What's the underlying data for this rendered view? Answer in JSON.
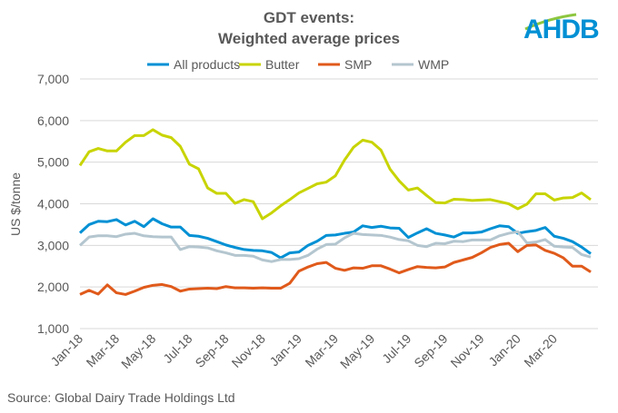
{
  "chart_data": {
    "type": "line",
    "title": "GDT events:",
    "subtitle": "Weighted average prices",
    "ylabel": "US $/tonne",
    "xlabel": "",
    "ylim": [
      1000,
      7000
    ],
    "yticks": [
      "1,000",
      "2,000",
      "3,000",
      "4,000",
      "5,000",
      "6,000",
      "7,000"
    ],
    "ytick_values": [
      1000,
      2000,
      3000,
      4000,
      5000,
      6000,
      7000
    ],
    "xtick_labels": [
      "Jan-18",
      "Mar-18",
      "May-18",
      "Jul-18",
      "Sep-18",
      "Nov-18",
      "Jan-19",
      "Mar-19",
      "May-19",
      "Jul-19",
      "Sep-19",
      "Nov-19",
      "Jan-20",
      "Mar-20"
    ],
    "xtick_every": 4,
    "grid": true,
    "legend": "top",
    "series": [
      {
        "name": "All products",
        "color": "#0090D4",
        "values": [
          3300,
          3500,
          3580,
          3570,
          3620,
          3490,
          3580,
          3450,
          3640,
          3520,
          3440,
          3440,
          3240,
          3220,
          3170,
          3090,
          3010,
          2950,
          2900,
          2880,
          2870,
          2830,
          2700,
          2820,
          2840,
          3000,
          3100,
          3240,
          3250,
          3290,
          3320,
          3470,
          3430,
          3460,
          3420,
          3410,
          3190,
          3300,
          3400,
          3290,
          3250,
          3200,
          3300,
          3300,
          3320,
          3400,
          3470,
          3450,
          3290,
          3330,
          3360,
          3430,
          3220,
          3170,
          3090,
          2960,
          2800
        ]
      },
      {
        "name": "Butter",
        "color": "#C8D400",
        "values": [
          4920,
          5250,
          5330,
          5270,
          5270,
          5480,
          5640,
          5640,
          5780,
          5650,
          5590,
          5380,
          4950,
          4840,
          4380,
          4250,
          4250,
          4010,
          4100,
          4050,
          3640,
          3780,
          3950,
          4100,
          4260,
          4370,
          4480,
          4520,
          4670,
          5050,
          5360,
          5530,
          5480,
          5290,
          4830,
          4550,
          4330,
          4380,
          4200,
          4030,
          4020,
          4110,
          4100,
          4080,
          4090,
          4100,
          4050,
          4000,
          3880,
          3990,
          4240,
          4240,
          4090,
          4140,
          4150,
          4260,
          4100
        ]
      },
      {
        "name": "SMP",
        "color": "#E05A1B",
        "values": [
          1820,
          1920,
          1830,
          2050,
          1860,
          1820,
          1900,
          1990,
          2040,
          2060,
          2010,
          1900,
          1950,
          1960,
          1970,
          1960,
          2010,
          1980,
          1980,
          1970,
          1980,
          1970,
          1970,
          2090,
          2380,
          2480,
          2560,
          2590,
          2450,
          2400,
          2460,
          2450,
          2510,
          2510,
          2430,
          2340,
          2420,
          2490,
          2470,
          2460,
          2480,
          2590,
          2650,
          2710,
          2820,
          2950,
          3020,
          3050,
          2850,
          3000,
          3010,
          2880,
          2810,
          2700,
          2500,
          2500,
          2360
        ]
      },
      {
        "name": "WMP",
        "color": "#B4C6CF",
        "values": [
          3000,
          3200,
          3230,
          3230,
          3210,
          3270,
          3290,
          3230,
          3210,
          3200,
          3200,
          2900,
          2970,
          2960,
          2940,
          2870,
          2820,
          2760,
          2760,
          2740,
          2650,
          2610,
          2660,
          2660,
          2680,
          2760,
          2910,
          3020,
          3030,
          3180,
          3290,
          3260,
          3250,
          3240,
          3200,
          3140,
          3110,
          3000,
          2970,
          3050,
          3040,
          3100,
          3090,
          3130,
          3130,
          3130,
          3230,
          3290,
          3330,
          3060,
          3080,
          3140,
          2980,
          2960,
          2950,
          2780,
          2720
        ]
      }
    ]
  },
  "logo": {
    "text": "AHDB"
  },
  "source": "Source: Global Dairy Trade Holdings Ltd"
}
